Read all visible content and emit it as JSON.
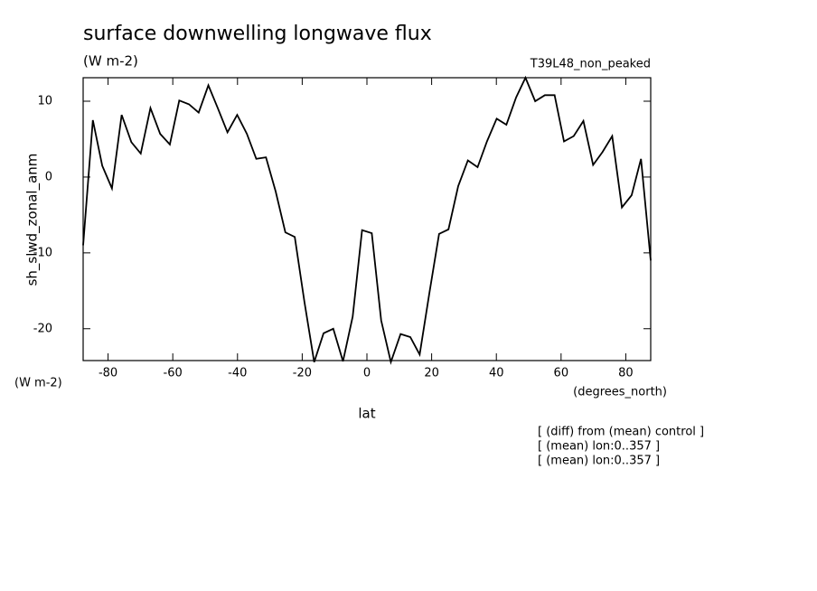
{
  "chart_data": {
    "type": "line",
    "title": "surface downwelling longwave flux",
    "subtitle": "(W m-2)",
    "experiment": "T39L48_non_peaked",
    "ylabel": "sh_slwd_zonal_anm",
    "yunits": "(W m-2)",
    "xunits": "(degrees_north)",
    "xlabel": "lat",
    "notes": [
      "[ (diff) from (mean) control ]",
      "[ (mean) lon:0..357 ]",
      "[ (mean) lon:0..357 ]"
    ],
    "color": "#000000",
    "x": [
      -87.7,
      -84.7,
      -81.8,
      -78.8,
      -75.8,
      -72.8,
      -69.9,
      -66.9,
      -63.9,
      -60.9,
      -58.0,
      -55.0,
      -52.0,
      -49.0,
      -46.1,
      -43.1,
      -40.1,
      -37.1,
      -34.2,
      -31.2,
      -28.2,
      -25.2,
      -22.3,
      -19.3,
      -16.3,
      -13.4,
      -10.4,
      -7.4,
      -4.4,
      -1.5,
      1.5,
      4.4,
      7.4,
      10.4,
      13.4,
      16.3,
      19.3,
      22.3,
      25.2,
      28.2,
      31.2,
      34.2,
      37.1,
      40.1,
      43.1,
      46.1,
      49.0,
      52.0,
      55.0,
      58.0,
      60.9,
      63.9,
      66.9,
      69.9,
      72.8,
      75.8,
      78.8,
      81.8,
      84.7,
      87.7
    ],
    "values": [
      -9,
      7.5,
      1.5,
      -1.5,
      8.2,
      4.6,
      3.1,
      9.1,
      5.7,
      4.3,
      10.1,
      9.6,
      8.5,
      12.1,
      9.1,
      5.9,
      8.2,
      5.7,
      2.4,
      2.6,
      -1.9,
      -7.3,
      -7.9,
      -16.5,
      -24.4,
      -20.6,
      -20.0,
      -24.3,
      -18.4,
      -7.0,
      -7.4,
      -18.9,
      -24.4,
      -20.7,
      -21.1,
      -23.4,
      -15.3,
      -7.5,
      -6.9,
      -1.2,
      2.2,
      1.3,
      4.7,
      7.7,
      6.9,
      10.5,
      13.1,
      10.0,
      10.8,
      10.8,
      4.7,
      5.4,
      7.4,
      1.6,
      3.3,
      5.4,
      -4.0,
      -2.4,
      2.4,
      -11
    ],
    "xlim": [
      -87.7,
      87.7
    ],
    "ylim": [
      -24.2,
      13.1
    ],
    "xticks": [
      -80,
      -60,
      -40,
      -20,
      0,
      20,
      40,
      60,
      80
    ],
    "yticks": [
      -20,
      -10,
      0,
      10
    ]
  }
}
